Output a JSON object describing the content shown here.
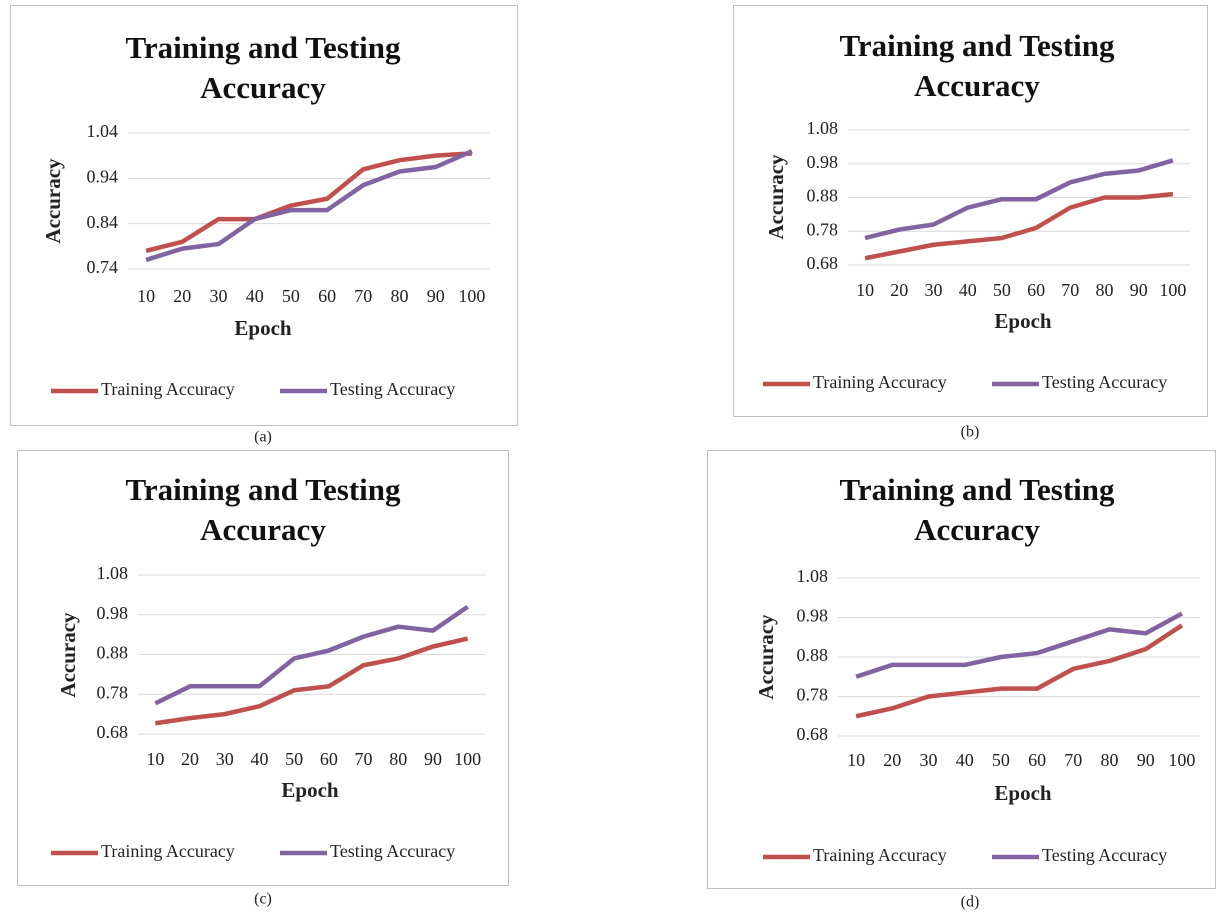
{
  "chart_data": [
    {
      "type": "line",
      "title": "Training and Testing Accuracy",
      "x_label": "Epoch",
      "y_label": "Accuracy",
      "caption": "(a)",
      "categories": [
        "10",
        "20",
        "30",
        "40",
        "50",
        "60",
        "70",
        "80",
        "90",
        "100"
      ],
      "ylim": [
        0.74,
        1.04
      ],
      "yticks": [
        0.74,
        0.84,
        0.94,
        1.04
      ],
      "grid": true,
      "legend": "bottom",
      "series": [
        {
          "name": "Training Accuracy",
          "color": "#c0504d",
          "values": [
            0.78,
            0.8,
            0.85,
            0.85,
            0.88,
            0.895,
            0.96,
            0.98,
            0.99,
            0.995
          ]
        },
        {
          "name": "Testing Accuracy",
          "color": "#8064a2",
          "values": [
            0.76,
            0.785,
            0.795,
            0.85,
            0.87,
            0.87,
            0.925,
            0.955,
            0.965,
            1.0
          ]
        }
      ]
    },
    {
      "type": "line",
      "title": "Training and Testing Accuracy",
      "x_label": "Epoch",
      "y_label": "Accuracy",
      "caption": "(b)",
      "categories": [
        "10",
        "20",
        "30",
        "40",
        "50",
        "60",
        "70",
        "80",
        "90",
        "100"
      ],
      "ylim": [
        0.68,
        1.08
      ],
      "yticks": [
        0.68,
        0.78,
        0.88,
        0.98,
        1.08
      ],
      "grid": true,
      "legend": "bottom",
      "series": [
        {
          "name": "Training Accuracy",
          "color": "#c0504d",
          "values": [
            0.7,
            0.72,
            0.74,
            0.75,
            0.76,
            0.79,
            0.85,
            0.88,
            0.88,
            0.89
          ]
        },
        {
          "name": "Testing Accuracy",
          "color": "#8064a2",
          "values": [
            0.76,
            0.785,
            0.8,
            0.85,
            0.875,
            0.875,
            0.925,
            0.95,
            0.96,
            0.99
          ]
        }
      ]
    },
    {
      "type": "line",
      "title": "Training and Testing Accuracy",
      "x_label": "Epoch",
      "y_label": "Accuracy",
      "caption": "(c)",
      "categories": [
        "10",
        "20",
        "30",
        "40",
        "50",
        "60",
        "70",
        "80",
        "90",
        "100"
      ],
      "ylim": [
        0.68,
        1.08
      ],
      "yticks": [
        0.68,
        0.78,
        0.88,
        0.98,
        1.08
      ],
      "grid": true,
      "legend": "bottom",
      "series": [
        {
          "name": "Training Accuracy",
          "color": "#c0504d",
          "values": [
            0.707,
            0.72,
            0.73,
            0.75,
            0.79,
            0.8,
            0.853,
            0.87,
            0.9,
            0.92
          ]
        },
        {
          "name": "Testing Accuracy",
          "color": "#8064a2",
          "values": [
            0.757,
            0.8,
            0.8,
            0.8,
            0.87,
            0.89,
            0.925,
            0.95,
            0.94,
            1.0
          ]
        }
      ]
    },
    {
      "type": "line",
      "title": "Training and Testing Accuracy",
      "x_label": "Epoch",
      "y_label": "Accuracy",
      "caption": "(d)",
      "categories": [
        "10",
        "20",
        "30",
        "40",
        "50",
        "60",
        "70",
        "80",
        "90",
        "100"
      ],
      "ylim": [
        0.68,
        1.08
      ],
      "yticks": [
        0.68,
        0.78,
        0.88,
        0.98,
        1.08
      ],
      "grid": true,
      "legend": "bottom",
      "series": [
        {
          "name": "Training Accuracy",
          "color": "#c0504d",
          "values": [
            0.73,
            0.75,
            0.78,
            0.79,
            0.8,
            0.8,
            0.85,
            0.87,
            0.9,
            0.96
          ]
        },
        {
          "name": "Testing Accuracy",
          "color": "#8064a2",
          "values": [
            0.83,
            0.86,
            0.86,
            0.86,
            0.88,
            0.89,
            0.92,
            0.95,
            0.94,
            0.99
          ]
        }
      ]
    }
  ]
}
